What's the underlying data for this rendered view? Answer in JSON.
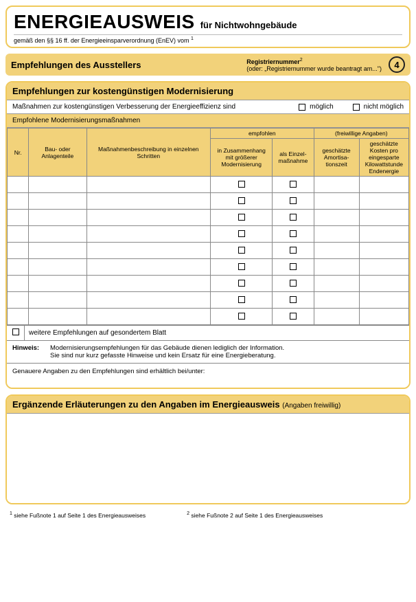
{
  "header": {
    "main_title": "ENERGIEAUSWEIS",
    "sub_title": "für Nichtwohngebäude",
    "legal_line_pre": "gemäß den §§ 16 ff. der Energieeinsparverordnung (EnEV) vom",
    "legal_sup": "1"
  },
  "band": {
    "title": "Empfehlungen des Ausstellers",
    "reg_label": "Registriernummer",
    "reg_sup": "2",
    "reg_alt": "(oder: „Registriernummer wurde beantragt am...\")",
    "page_number": "4"
  },
  "section1": {
    "heading": "Empfehlungen zur kostengünstigen Modernisierung",
    "measures_intro": "Maßnahmen zur kostengünstigen Verbesserung der Energieeffizienz sind",
    "opt_possible": "möglich",
    "opt_not_possible": "nicht möglich",
    "table_caption": "Empfohlene Modernisierungsmaßnahmen",
    "columns": {
      "nr": "Nr.",
      "bau": "Bau- oder Anlagenteile",
      "mass": "Maßnahmenbeschreibung in einzelnen Schritten",
      "group_emp": "empfohlen",
      "emp1": "in Zusammenhang mit größerer Modernisierung",
      "emp2": "als Einzel­maß­nahme",
      "group_opt": "(freiwillige Angaben)",
      "opt1": "geschätzte Amortisa­tionszeit",
      "opt2": "geschätzte Kosten pro eingesparte Kilowatt­stunde Endenergie"
    },
    "row_count": 9,
    "further_label": "weitere Empfehlungen auf gesondertem Blatt",
    "hinweis_label": "Hinweis:",
    "hinweis_text_l1": "Modernisierungsempfehlungen für das Gebäude dienen lediglich der Information.",
    "hinweis_text_l2": "Sie sind nur kurz gefasste Hinweise und kein Ersatz für eine Energieberatung.",
    "genauere": "Genauere Angaben zu den Empfehlungen sind erhältlich bei/unter:"
  },
  "section2": {
    "heading": "Ergänzende Erläuterungen zu den Angaben im Energieausweis",
    "heading_light": "(Angaben freiwillig)"
  },
  "footnotes": {
    "f1_sup": "1",
    "f1": "siehe Fußnote 1 auf Seite 1 des Energieausweises",
    "f2_sup": "2",
    "f2": "siehe Fußnote 2 auf Seite 1 des Energieausweises"
  },
  "colors": {
    "accent": "#f0c95a",
    "fill": "#f2d27a",
    "border_grey": "#888888"
  }
}
